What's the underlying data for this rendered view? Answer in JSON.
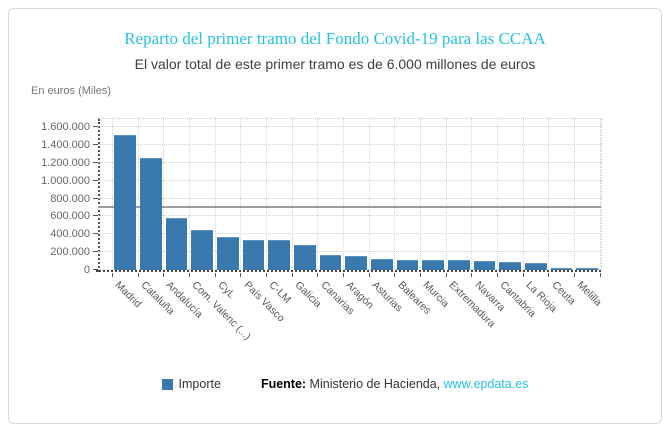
{
  "card": {
    "title": "Reparto del primer tramo del Fondo Covid-19 para las CCAA",
    "subtitle": "El valor total de este primer tramo es de 6.000 millones de euros",
    "units_label": "En euros (Miles)",
    "legend": {
      "label": "Importe"
    },
    "footer": {
      "source_label": "Fuente:",
      "source_text": " Ministerio de Hacienda, ",
      "link_text": "www.epdata.es"
    }
  },
  "colors": {
    "accent_cyan": "#24c3e6",
    "bar_blue": "#3a79ad",
    "reference_line_gray": "#9c9c9c"
  },
  "chart_data": {
    "type": "bar",
    "title": "Reparto del primer tramo del Fondo Covid-19 para las CCAA",
    "subtitle": "El valor total de este primer tramo es de 6.000 millones de euros",
    "ylabel": "En euros (Miles)",
    "xlabel": "",
    "categories": [
      "Madrid",
      "Cataluña",
      "Andalucía",
      "Com. Valenc (...)",
      "CyL",
      "País Vasco",
      "C-LM",
      "Galicia",
      "Canarias",
      "Aragón",
      "Asturias",
      "Baleares",
      "Murcia",
      "Extremadura",
      "Navarra",
      "Cantabria",
      "La Rioja",
      "Ceuta",
      "Melilla"
    ],
    "series": [
      {
        "name": "Importe",
        "values": [
          1495400,
          1244700,
          574800,
          441100,
          355700,
          330200,
          321600,
          268600,
          160900,
          146800,
          106800,
          103600,
          102000,
          97800,
          92900,
          73800,
          69800,
          14700,
          11400
        ]
      }
    ],
    "ylim": [
      0,
      1600000
    ],
    "ytick_step": 200000,
    "ytick_labels": [
      "0",
      "200.000",
      "400.000",
      "600.000",
      "800.000",
      "1.000.000",
      "1.200.000",
      "1.400.000",
      "1.600.000"
    ],
    "reference_line_value": 690000,
    "grid": true,
    "x_label_rotation_deg": 45,
    "legend_position": "bottom"
  }
}
